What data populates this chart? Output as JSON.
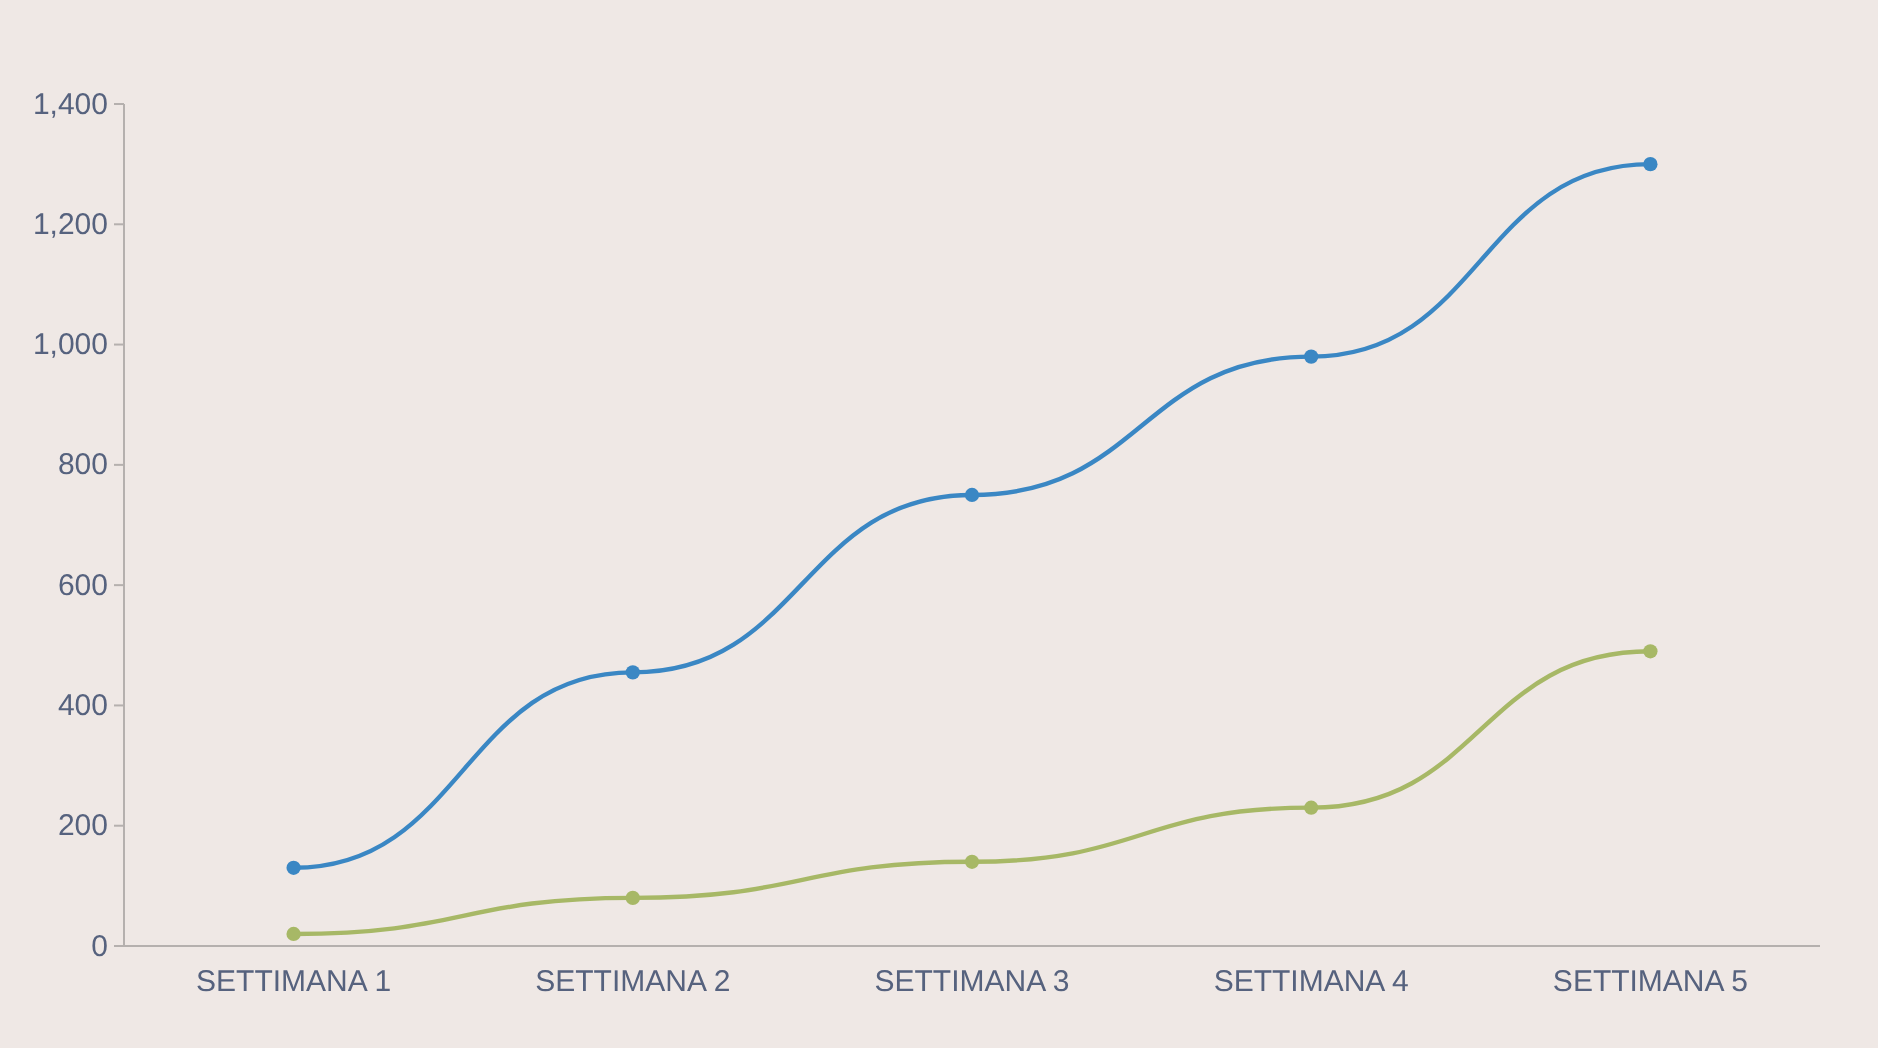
{
  "chart_data": {
    "type": "line",
    "categories": [
      "SETTIMANA 1",
      "SETTIMANA 2",
      "SETTIMANA 3",
      "SETTIMANA 4",
      "SETTIMANA 5"
    ],
    "series": [
      {
        "color": "#3a87c4",
        "values": [
          130,
          455,
          750,
          980,
          1300
        ]
      },
      {
        "color": "#a7b866",
        "values": [
          20,
          80,
          140,
          230,
          490
        ]
      }
    ],
    "ylim": [
      0,
      1400
    ],
    "yticks": [
      0,
      {
        "value": 200,
        "label": "200"
      },
      {
        "value": 400,
        "label": "400"
      },
      {
        "value": 600,
        "label": "600"
      },
      {
        "value": 800,
        "label": "800"
      },
      {
        "value": 1000,
        "label": "1,000"
      },
      {
        "value": 1200,
        "label": "1,200"
      },
      {
        "value": 1400,
        "label": "1,400"
      }
    ],
    "grid": false,
    "marker": "circle",
    "line_style": "solid"
  }
}
